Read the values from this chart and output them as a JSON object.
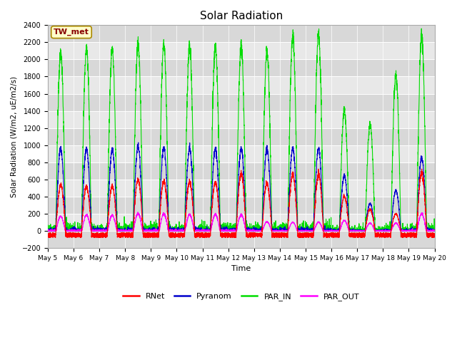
{
  "title": "Solar Radiation",
  "ylabel": "Solar Radiation (W/m2, uE/m2/s)",
  "xlabel": "Time",
  "ylim": [
    -200,
    2400
  ],
  "yticks": [
    -200,
    0,
    200,
    400,
    600,
    800,
    1000,
    1200,
    1400,
    1600,
    1800,
    2000,
    2200,
    2400
  ],
  "station_label": "TW_met",
  "colors": {
    "RNet": "#ff0000",
    "Pyranom": "#0000cc",
    "PAR_IN": "#00dd00",
    "PAR_OUT": "#ff00ff"
  },
  "legend_labels": [
    "RNet",
    "Pyranom",
    "PAR_IN",
    "PAR_OUT"
  ],
  "plot_bg_color": "#d8d8d8",
  "fig_bg_color": "#ffffff",
  "n_days": 15,
  "start_day": 5,
  "end_day": 20,
  "grid_color": "#ffffff",
  "linewidth": 0.8,
  "band_colors": [
    "#d0d0d0",
    "#c0c0c0"
  ]
}
